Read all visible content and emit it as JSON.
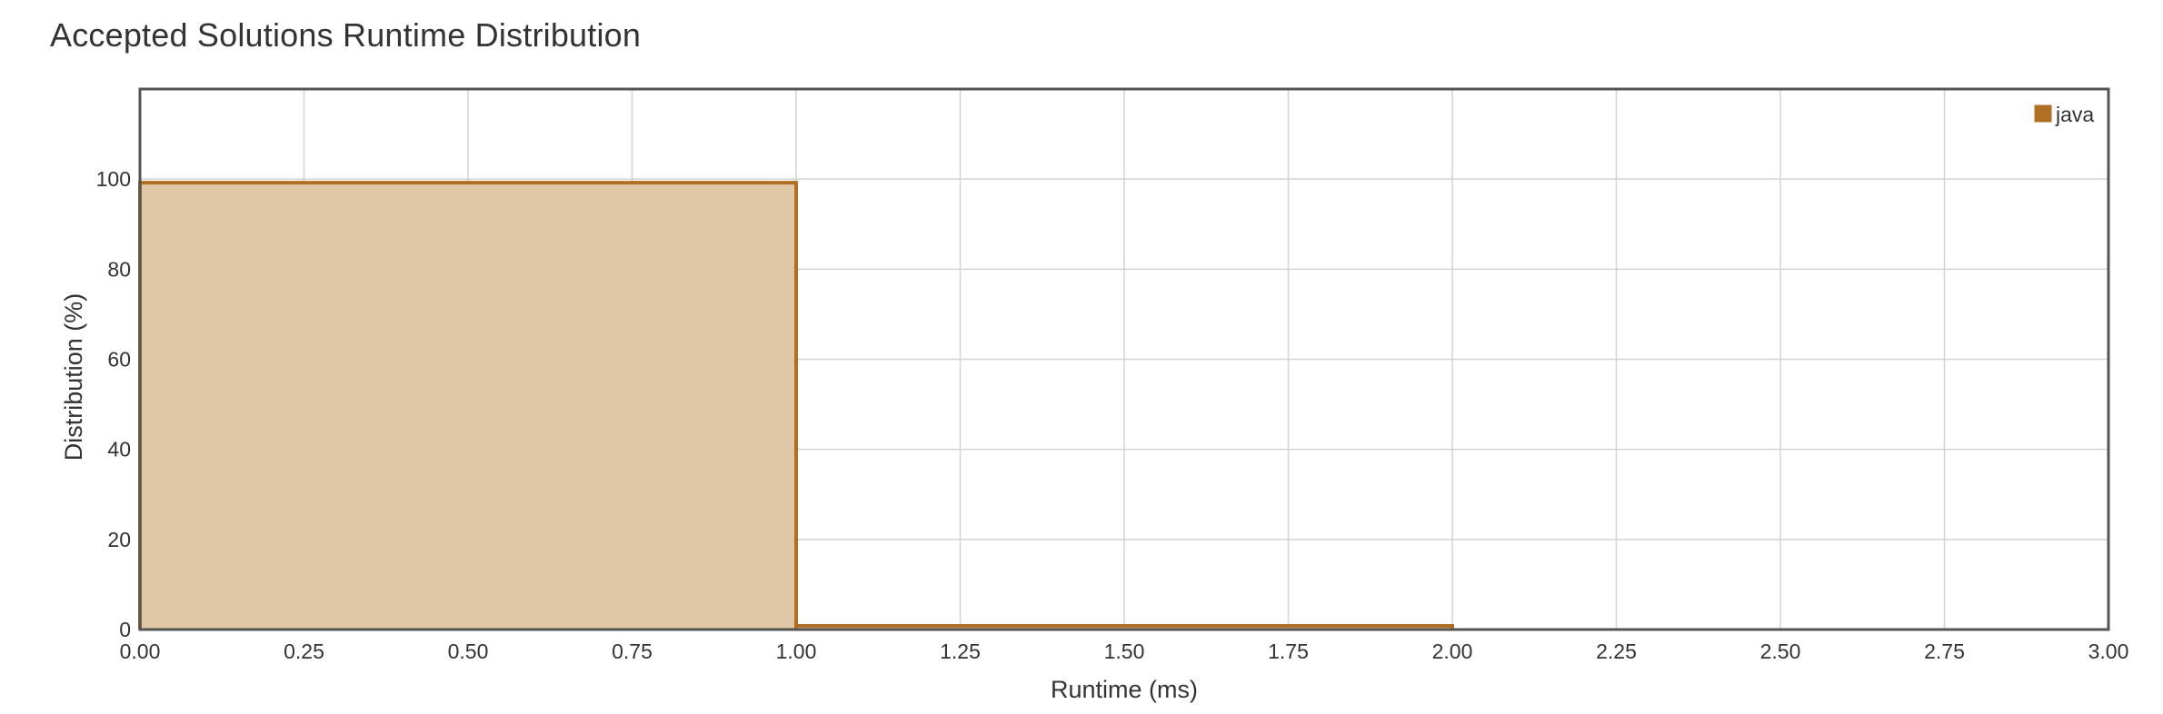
{
  "page": {
    "title": "Accepted Solutions Runtime Distribution"
  },
  "chart_data": {
    "type": "area",
    "title": "Accepted Solutions Runtime Distribution",
    "xlabel": "Runtime (ms)",
    "ylabel": "Distribution (%)",
    "xlim": [
      0,
      3
    ],
    "ylim": [
      0,
      120
    ],
    "x_ticks": [
      "0.00",
      "0.25",
      "0.50",
      "0.75",
      "1.00",
      "1.25",
      "1.50",
      "1.75",
      "2.00",
      "2.25",
      "2.50",
      "2.75",
      "3.00"
    ],
    "y_ticks": [
      "0",
      "20",
      "40",
      "60",
      "80",
      "100"
    ],
    "grid": true,
    "legend_position": "top-right",
    "series": [
      {
        "name": "java",
        "color": "#b06f25",
        "fill_color": "#dfc7a7",
        "bins": [
          {
            "x0": 0,
            "x1": 1,
            "value": 99.2
          },
          {
            "x0": 1,
            "x1": 2,
            "value": 0.8
          }
        ]
      }
    ]
  }
}
